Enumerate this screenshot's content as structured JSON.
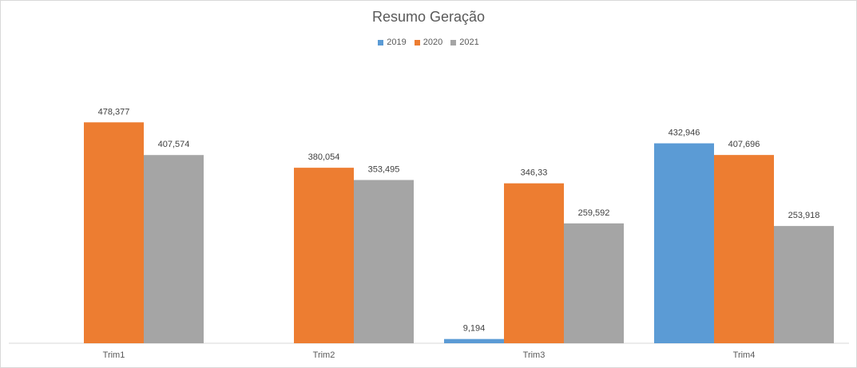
{
  "chart_data": {
    "type": "bar",
    "title": "Resumo Geração",
    "xlabel": "",
    "ylabel": "",
    "ylim": [
      0,
      550
    ],
    "grid": false,
    "legend_position": "top",
    "categories": [
      "Trim1",
      "Trim2",
      "Trim3",
      "Trim4"
    ],
    "series": [
      {
        "name": "2019",
        "color": "#5b9bd5",
        "values": [
          null,
          null,
          9.194,
          432.946
        ],
        "labels": [
          "",
          "",
          "9,194",
          "432,946"
        ]
      },
      {
        "name": "2020",
        "color": "#ed7d31",
        "values": [
          478.377,
          380.054,
          346.33,
          407.696
        ],
        "labels": [
          "478,377",
          "380,054",
          "346,33",
          "407,696"
        ]
      },
      {
        "name": "2021",
        "color": "#a5a5a5",
        "values": [
          407.574,
          353.495,
          259.592,
          253.918
        ],
        "labels": [
          "407,574",
          "353,495",
          "259,592",
          "253,918"
        ]
      }
    ]
  }
}
